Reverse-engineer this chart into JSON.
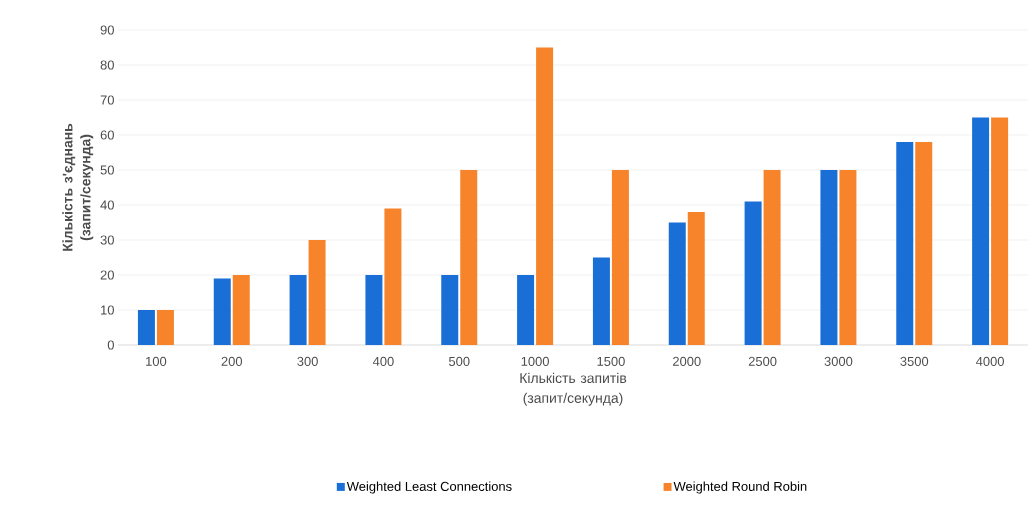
{
  "chart_data": {
    "type": "bar",
    "xlabel": "Кількість запитів (запит/секунда)",
    "ylabel": "Кількість з'єднань (запит/секунда)",
    "categories": [
      "100",
      "200",
      "300",
      "400",
      "500",
      "1000",
      "1500",
      "2000",
      "2500",
      "3000",
      "3500",
      "4000"
    ],
    "series": [
      {
        "name": "Weighted Least Connections",
        "color": "#1a6fd6",
        "values": [
          10,
          19,
          20,
          20,
          20,
          20,
          25,
          35,
          41,
          50,
          58,
          65
        ]
      },
      {
        "name": "Weighted Round Robin",
        "color": "#f7842b",
        "values": [
          10,
          20,
          30,
          39,
          50,
          85,
          50,
          38,
          50,
          50,
          58,
          65
        ]
      }
    ],
    "ylim": [
      0,
      90
    ],
    "yticks": [
      0,
      10,
      20,
      30,
      40,
      50,
      60,
      70,
      80,
      90
    ],
    "grid": "y",
    "legend": "bottom"
  }
}
